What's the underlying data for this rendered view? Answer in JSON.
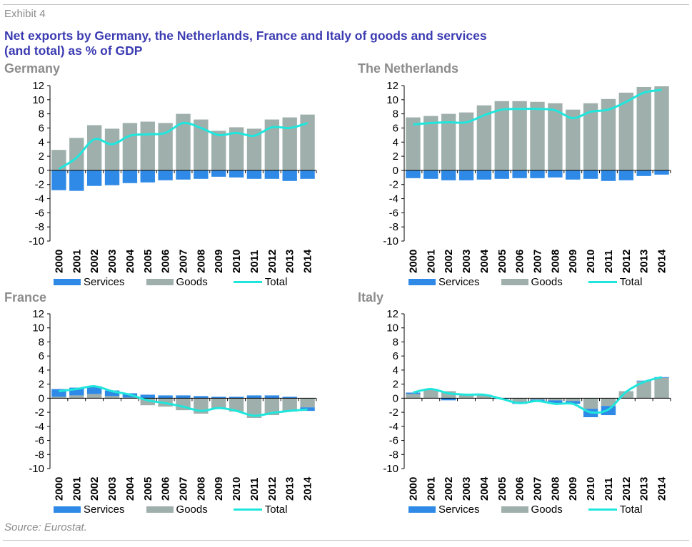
{
  "header": {
    "exhibit": "Exhibit 4",
    "title_line1": "Net exports by Germany, the Netherlands, France and Italy of goods and services",
    "title_line2": "(and total) as % of GDP"
  },
  "source": "Source: Eurostat.",
  "colors": {
    "services": "#2e8ae6",
    "goods": "#9fb0ac",
    "total": "#1fe6dc",
    "title": "#3b3bb2",
    "grey": "#8c8c8c"
  },
  "legend": {
    "services": "Services",
    "goods": "Goods",
    "total": "Total"
  },
  "chart_data": [
    {
      "type": "bar",
      "title": "Germany",
      "categories": [
        "2000",
        "2001",
        "2002",
        "2003",
        "2004",
        "2005",
        "2006",
        "2007",
        "2008",
        "2009",
        "2010",
        "2011",
        "2012",
        "2013",
        "2014"
      ],
      "ylim": [
        -10,
        12
      ],
      "yticks": [
        12,
        10,
        8,
        6,
        4,
        2,
        0,
        -2,
        -4,
        -6,
        -8,
        -10
      ],
      "series": [
        {
          "name": "Services",
          "kind": "bar",
          "values": [
            -2.8,
            -2.9,
            -2.2,
            -2.1,
            -1.8,
            -1.7,
            -1.4,
            -1.3,
            -1.2,
            -0.9,
            -1.0,
            -1.2,
            -1.2,
            -1.5,
            -1.2
          ]
        },
        {
          "name": "Goods",
          "kind": "bar",
          "values": [
            2.9,
            4.6,
            6.4,
            5.9,
            6.7,
            6.9,
            6.7,
            8.0,
            7.2,
            5.6,
            6.1,
            5.9,
            7.2,
            7.5,
            7.9
          ]
        },
        {
          "name": "Total",
          "kind": "line",
          "values": [
            0.2,
            1.8,
            4.4,
            3.7,
            4.9,
            5.1,
            5.3,
            6.7,
            6.0,
            5.0,
            5.3,
            4.9,
            6.1,
            6.0,
            6.7
          ]
        }
      ]
    },
    {
      "type": "bar",
      "title": "The Netherlands",
      "categories": [
        "2000",
        "2001",
        "2002",
        "2003",
        "2004",
        "2005",
        "2006",
        "2007",
        "2008",
        "2009",
        "2010",
        "2011",
        "2012",
        "2013",
        "2014"
      ],
      "ylim": [
        -10,
        12
      ],
      "yticks": [
        12,
        10,
        8,
        6,
        4,
        2,
        0,
        -2,
        -4,
        -6,
        -8,
        -10
      ],
      "series": [
        {
          "name": "Services",
          "kind": "bar",
          "values": [
            -1.1,
            -1.2,
            -1.4,
            -1.4,
            -1.3,
            -1.2,
            -1.1,
            -1.1,
            -1.0,
            -1.3,
            -1.2,
            -1.5,
            -1.4,
            -0.8,
            -0.6
          ]
        },
        {
          "name": "Goods",
          "kind": "bar",
          "values": [
            7.5,
            7.7,
            8.0,
            8.2,
            9.2,
            9.8,
            9.8,
            9.7,
            9.5,
            8.6,
            9.5,
            10.1,
            11.0,
            11.8,
            11.9
          ]
        },
        {
          "name": "Total",
          "kind": "line",
          "values": [
            6.5,
            6.7,
            6.8,
            6.8,
            7.8,
            8.6,
            8.7,
            8.7,
            8.5,
            7.4,
            8.3,
            8.6,
            9.7,
            11.0,
            11.4
          ]
        }
      ]
    },
    {
      "type": "bar",
      "title": "France",
      "categories": [
        "2000",
        "2001",
        "2002",
        "2003",
        "2004",
        "2005",
        "2006",
        "2007",
        "2008",
        "2009",
        "2010",
        "2011",
        "2012",
        "2013",
        "2014"
      ],
      "ylim": [
        -10,
        12
      ],
      "yticks": [
        12,
        10,
        8,
        6,
        4,
        2,
        0,
        -2,
        -4,
        -6,
        -8,
        -10
      ],
      "series": [
        {
          "name": "Services",
          "kind": "bar",
          "values": [
            1.1,
            1.1,
            1.1,
            0.8,
            0.6,
            0.5,
            0.4,
            0.4,
            0.3,
            0.2,
            0.2,
            0.4,
            0.4,
            0.2,
            -0.5
          ]
        },
        {
          "name": "Goods",
          "kind": "bar",
          "values": [
            0.2,
            0.4,
            0.6,
            0.3,
            0.1,
            -1.0,
            -1.2,
            -1.7,
            -2.2,
            -1.5,
            -1.9,
            -2.8,
            -2.4,
            -1.9,
            -1.3
          ]
        },
        {
          "name": "Total",
          "kind": "line",
          "values": [
            1.0,
            1.3,
            1.7,
            1.0,
            0.5,
            -0.3,
            -0.7,
            -1.2,
            -1.8,
            -1.4,
            -1.8,
            -2.5,
            -2.1,
            -1.8,
            -1.6
          ]
        }
      ]
    },
    {
      "type": "bar",
      "title": "Italy",
      "categories": [
        "2000",
        "2001",
        "2002",
        "2003",
        "2004",
        "2005",
        "2006",
        "2007",
        "2008",
        "2009",
        "2010",
        "2011",
        "2012",
        "2013",
        "2014"
      ],
      "ylim": [
        -10,
        12
      ],
      "yticks": [
        12,
        10,
        8,
        6,
        4,
        2,
        0,
        -2,
        -4,
        -6,
        -8,
        -10
      ],
      "series": [
        {
          "name": "Services",
          "kind": "bar",
          "values": [
            0.2,
            0.1,
            -0.3,
            0.0,
            0.1,
            -0.1,
            -0.3,
            -0.3,
            -0.5,
            -0.4,
            -1.2,
            -1.3,
            0.0,
            0.1,
            0.1
          ]
        },
        {
          "name": "Goods",
          "kind": "bar",
          "values": [
            0.6,
            1.2,
            1.0,
            0.6,
            0.4,
            0.0,
            -0.5,
            -0.2,
            -0.3,
            -0.4,
            -1.5,
            -1.1,
            1.0,
            2.4,
            2.9
          ]
        },
        {
          "name": "Total",
          "kind": "line",
          "values": [
            0.8,
            1.3,
            0.7,
            0.5,
            0.5,
            -0.1,
            -0.7,
            -0.4,
            -0.8,
            -0.8,
            -2.0,
            -1.6,
            0.9,
            2.3,
            3.0
          ]
        }
      ]
    }
  ]
}
